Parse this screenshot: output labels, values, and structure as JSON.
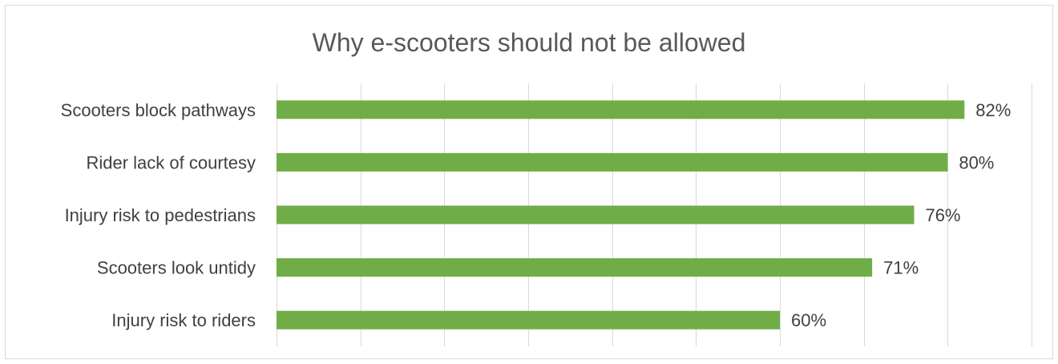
{
  "chart_data": {
    "type": "bar",
    "orientation": "horizontal",
    "title": "Why e-scooters should not be allowed",
    "categories": [
      "Scooters block pathways",
      "Rider lack of courtesy",
      "Injury risk to pedestrians",
      "Scooters look untidy",
      "Injury risk to riders"
    ],
    "values": [
      82,
      80,
      76,
      71,
      60
    ],
    "data_labels": [
      "82%",
      "80%",
      "76%",
      "71%",
      "60%"
    ],
    "xlim": [
      0,
      90
    ],
    "grid": true,
    "bar_color": "#70ad47"
  }
}
